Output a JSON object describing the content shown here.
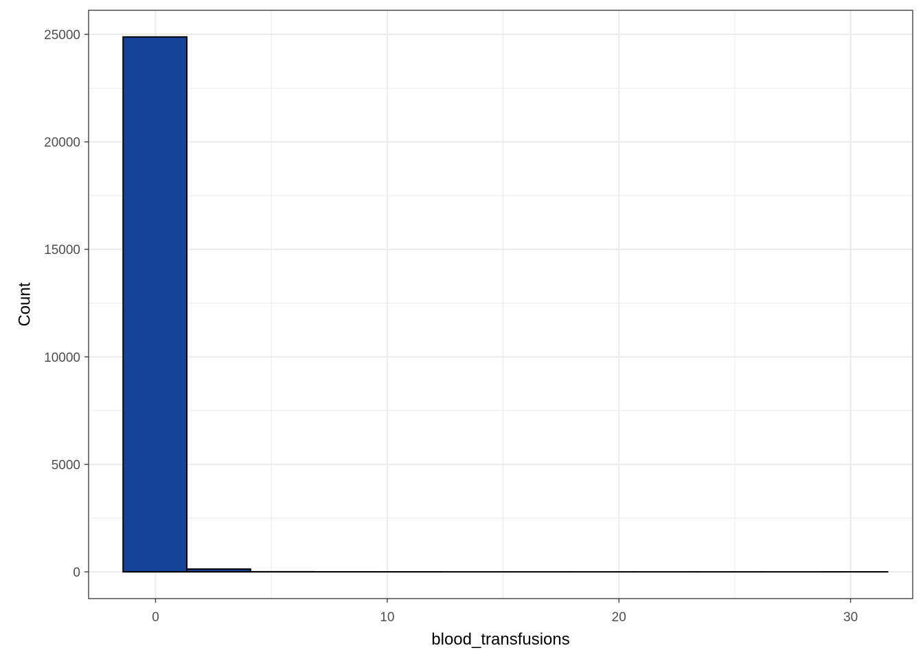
{
  "chart_data": {
    "type": "bar",
    "title": "",
    "xlabel": "blood_transfusions",
    "ylabel": "Count",
    "xlim": [
      -2.89,
      32.68
    ],
    "ylim": [
      -1244,
      26119
    ],
    "x_ticks": [
      0,
      10,
      20,
      30
    ],
    "y_ticks": [
      0,
      5000,
      10000,
      15000,
      20000,
      25000
    ],
    "x_tick_labels": [
      "0",
      "10",
      "20",
      "30"
    ],
    "y_tick_labels": [
      "0",
      "5000",
      "10000",
      "15000",
      "20000",
      "25000"
    ],
    "x_minor_ticks": [
      5,
      15,
      25
    ],
    "y_minor_ticks": [
      2500,
      7500,
      12500,
      17500,
      22500
    ],
    "grid": true,
    "bins": [
      {
        "x0": -1.4,
        "x1": 1.35,
        "count": 24880
      },
      {
        "x0": 1.35,
        "x1": 4.1,
        "count": 130
      },
      {
        "x0": 4.1,
        "x1": 6.85,
        "count": 5
      },
      {
        "x0": 6.85,
        "x1": 9.6,
        "count": 2
      },
      {
        "x0": 9.6,
        "x1": 12.35,
        "count": 1
      },
      {
        "x0": 12.35,
        "x1": 15.1,
        "count": 0
      },
      {
        "x0": 15.1,
        "x1": 17.85,
        "count": 0
      },
      {
        "x0": 17.85,
        "x1": 20.6,
        "count": 0
      },
      {
        "x0": 20.6,
        "x1": 23.35,
        "count": 0
      },
      {
        "x0": 23.35,
        "x1": 26.1,
        "count": 0
      },
      {
        "x0": 26.1,
        "x1": 28.85,
        "count": 0
      },
      {
        "x0": 28.85,
        "x1": 31.6,
        "count": 1
      }
    ],
    "fill_color": "#17449b",
    "outline_color": "#000000",
    "background_color": "#ffffff",
    "grid_color": "#ebebeb",
    "panel_border_color": "#333333"
  }
}
